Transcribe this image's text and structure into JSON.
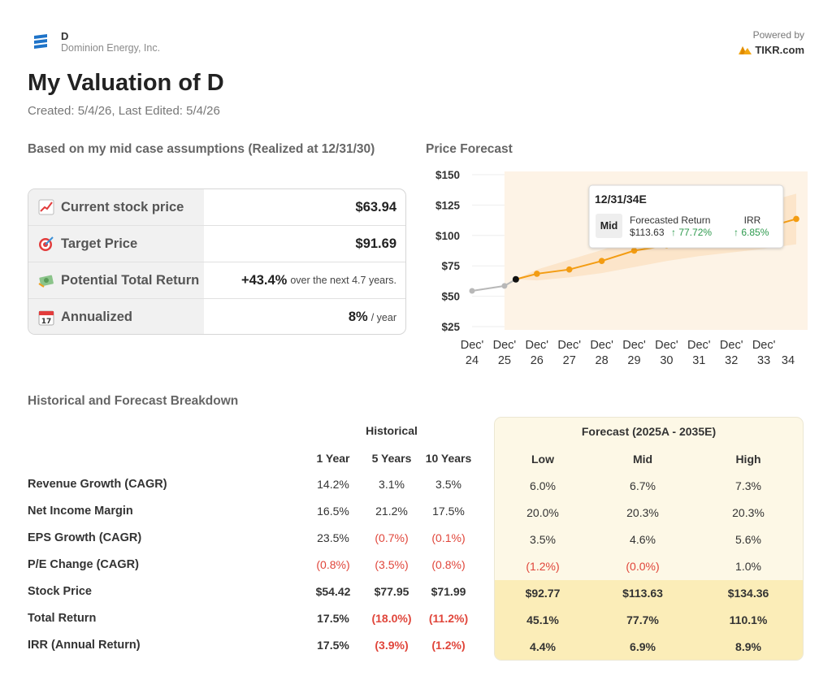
{
  "header": {
    "ticker": "D",
    "company": "Dominion Energy, Inc.",
    "powered_by": "Powered by",
    "brand": "TIKR.com"
  },
  "title": "My Valuation of D",
  "subtitle": "Created: 5/4/26, Last Edited: 5/4/26",
  "summary": {
    "heading": "Based on my mid case assumptions (Realized at 12/31/30)",
    "rows": [
      {
        "icon": "chart-increasing-icon",
        "label": "Current stock price",
        "value": "$63.94",
        "suffix": ""
      },
      {
        "icon": "target-icon",
        "label": "Target Price",
        "value": "$91.69",
        "suffix": ""
      },
      {
        "icon": "money-icon",
        "label": "Potential Total Return",
        "value": "+43.4%",
        "suffix": "over the next 4.7 years."
      },
      {
        "icon": "calendar-icon",
        "label": "Annualized",
        "value": "8%",
        "suffix": "/ year"
      }
    ]
  },
  "chart_data": {
    "type": "line",
    "title": "Price Forecast",
    "y_ticks": [
      "$150",
      "$125",
      "$100",
      "$75",
      "$50",
      "$25"
    ],
    "ylim": [
      25,
      150
    ],
    "x_ticks": [
      [
        "Dec'",
        "24"
      ],
      [
        "Dec'",
        "25"
      ],
      [
        "Dec'",
        "26"
      ],
      [
        "Dec'",
        "27"
      ],
      [
        "Dec'",
        "28"
      ],
      [
        "Dec'",
        "29"
      ],
      [
        "Dec'",
        "30"
      ],
      [
        "Dec'",
        "31"
      ],
      [
        "Dec'",
        "32"
      ],
      [
        "Dec'",
        "33"
      ],
      [
        "",
        "34"
      ]
    ],
    "historical": {
      "x": [
        2024,
        2025
      ],
      "y": [
        54.42,
        58.5
      ]
    },
    "current": {
      "x": 2025.35,
      "y": 63.94
    },
    "forecast": {
      "x": [
        2025.35,
        2026,
        2027,
        2028,
        2029,
        2030,
        2031,
        2032,
        2033,
        2034
      ],
      "mid": [
        63.94,
        68.5,
        72,
        79,
        87.5,
        91.69,
        95.5,
        100,
        106,
        113.63
      ],
      "low": [
        63.94,
        63,
        65.5,
        69,
        74,
        79,
        83,
        86,
        89,
        92.77
      ],
      "high": [
        63.94,
        72,
        80,
        88,
        97,
        106,
        113,
        120,
        127,
        134.36
      ]
    },
    "tooltip": {
      "date": "12/31/34E",
      "case": "Mid",
      "label": "Forecasted Return",
      "irr_label": "IRR",
      "price": "$113.63",
      "return": "↑ 77.72%",
      "irr": "↑ 6.85%"
    },
    "colors": {
      "historical": "#b8b8b8",
      "forecast": "#f39c12",
      "band": "#fbe2c4",
      "shade": "#fdf3e6",
      "current": "#111111"
    }
  },
  "breakdown": {
    "heading": "Historical and Forecast Breakdown",
    "historical_label": "Historical",
    "forecast_label": "Forecast (2025A - 2035E)",
    "hist_cols": [
      "1 Year",
      "5 Years",
      "10 Years"
    ],
    "fc_cols": [
      "Low",
      "Mid",
      "High"
    ],
    "rows": [
      {
        "label": "Revenue Growth (CAGR)",
        "hist": [
          "14.2%",
          "3.1%",
          "3.5%"
        ],
        "fc": [
          "6.0%",
          "6.7%",
          "7.3%"
        ],
        "bold": false
      },
      {
        "label": "Net Income Margin",
        "hist": [
          "16.5%",
          "21.2%",
          "17.5%"
        ],
        "fc": [
          "20.0%",
          "20.3%",
          "20.3%"
        ],
        "bold": false
      },
      {
        "label": "EPS Growth (CAGR)",
        "hist": [
          "23.5%",
          "(0.7%)",
          "(0.1%)"
        ],
        "fc": [
          "3.5%",
          "4.6%",
          "5.6%"
        ],
        "bold": false
      },
      {
        "label": "P/E Change (CAGR)",
        "hist": [
          "(0.8%)",
          "(3.5%)",
          "(0.8%)"
        ],
        "fc": [
          "(1.2%)",
          "(0.0%)",
          "1.0%"
        ],
        "bold": false
      },
      {
        "label": "Stock Price",
        "hist": [
          "$54.42",
          "$77.95",
          "$71.99"
        ],
        "fc": [
          "$92.77",
          "$113.63",
          "$134.36"
        ],
        "bold": true
      },
      {
        "label": "Total Return",
        "hist": [
          "17.5%",
          "(18.0%)",
          "(11.2%)"
        ],
        "fc": [
          "45.1%",
          "77.7%",
          "110.1%"
        ],
        "bold": true
      },
      {
        "label": "IRR (Annual Return)",
        "hist": [
          "17.5%",
          "(3.9%)",
          "(1.2%)"
        ],
        "fc": [
          "4.4%",
          "6.9%",
          "8.9%"
        ],
        "bold": true
      }
    ]
  }
}
